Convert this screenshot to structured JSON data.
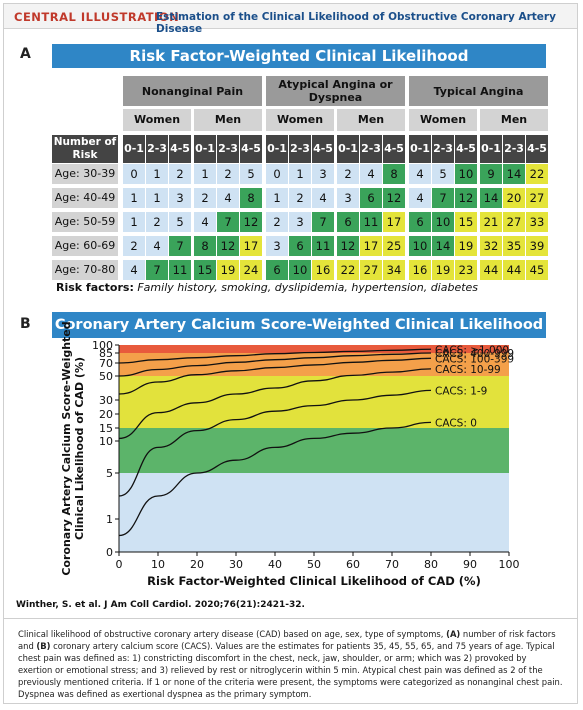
{
  "header": {
    "label": "CENTRAL ILLUSTRATION",
    "title": "Estimation of the Clinical Likelihood of Obstructive Coronary Artery Disease"
  },
  "panel_a": {
    "letter": "A",
    "title": "Risk Factor-Weighted Clinical Likelihood",
    "groups": [
      "Nonanginal Pain",
      "Atypical Angina or Dyspnea",
      "Typical Angina"
    ],
    "sexes": [
      "Women",
      "Men"
    ],
    "risk_header": "Number of Risk Factors",
    "risk_levels": [
      "0-1",
      "2-3",
      "4-5"
    ],
    "ages": [
      "Age: 30-39",
      "Age: 40-49",
      "Age: 50-59",
      "Age: 60-69",
      "Age: 70-80"
    ],
    "values": [
      [
        0,
        1,
        2,
        1,
        2,
        5,
        0,
        1,
        3,
        2,
        4,
        8,
        4,
        5,
        10,
        9,
        14,
        22
      ],
      [
        1,
        1,
        3,
        2,
        4,
        8,
        1,
        2,
        4,
        3,
        6,
        12,
        4,
        7,
        12,
        14,
        20,
        27
      ],
      [
        1,
        2,
        5,
        4,
        7,
        12,
        2,
        3,
        7,
        6,
        11,
        17,
        6,
        10,
        15,
        21,
        27,
        33
      ],
      [
        2,
        4,
        7,
        8,
        12,
        17,
        3,
        6,
        11,
        12,
        17,
        25,
        10,
        14,
        19,
        32,
        35,
        39
      ],
      [
        4,
        7,
        11,
        15,
        19,
        24,
        6,
        10,
        16,
        22,
        27,
        34,
        16,
        19,
        23,
        44,
        44,
        45
      ]
    ],
    "colors": [
      [
        "b",
        "b",
        "b",
        "b",
        "b",
        "b",
        "b",
        "b",
        "b",
        "b",
        "b",
        "g",
        "b",
        "b",
        "g",
        "g",
        "g",
        "y"
      ],
      [
        "b",
        "b",
        "b",
        "b",
        "b",
        "g",
        "b",
        "b",
        "b",
        "b",
        "g",
        "g",
        "b",
        "g",
        "g",
        "g",
        "y",
        "y"
      ],
      [
        "b",
        "b",
        "b",
        "b",
        "g",
        "g",
        "b",
        "b",
        "g",
        "g",
        "g",
        "y",
        "g",
        "g",
        "y",
        "y",
        "y",
        "y"
      ],
      [
        "b",
        "b",
        "g",
        "g",
        "g",
        "y",
        "b",
        "g",
        "g",
        "g",
        "y",
        "y",
        "g",
        "g",
        "y",
        "y",
        "y",
        "y"
      ],
      [
        "b",
        "g",
        "g",
        "g",
        "y",
        "y",
        "g",
        "g",
        "y",
        "y",
        "y",
        "y",
        "y",
        "y",
        "y",
        "y",
        "y",
        "y"
      ]
    ],
    "risk_factors_label": "Risk factors:",
    "risk_factors_text": "Family history, smoking, dyslipidemia, hypertension, diabetes"
  },
  "panel_b": {
    "letter": "B",
    "title": "Coronary Artery Calcium Score-Weighted Clinical Likelihood"
  },
  "colors": {
    "title_bar": "#2f86c6",
    "band_blue": "#cfe2f3",
    "band_green": "#5cb46a",
    "band_yellow": "#e2e23c",
    "band_orange": "#f4a04a",
    "band_red": "#e85a3c"
  },
  "chart_data": {
    "type": "line",
    "xlabel": "Risk Factor-Weighted Clinical Likelihood of CAD (%)",
    "ylabel": "Coronary Artery Calcium Score-Weighted Clinical Likelihood of CAD (%)",
    "xlim": [
      0,
      100
    ],
    "ylim": [
      0,
      100
    ],
    "xticks": [
      0,
      10,
      20,
      30,
      40,
      50,
      60,
      70,
      80,
      90,
      100
    ],
    "yticks": [
      0,
      1,
      5,
      10,
      15,
      20,
      30,
      50,
      70,
      85,
      100
    ],
    "ytick_labels": [
      "0",
      "1",
      "5",
      "10",
      "15",
      "20",
      "30",
      "50",
      "70",
      "85",
      "100"
    ],
    "grid": false,
    "bands": [
      {
        "from": 0,
        "to": 5,
        "color": "#cfe2f3"
      },
      {
        "from": 5,
        "to": 15,
        "color": "#5cb46a"
      },
      {
        "from": 15,
        "to": 50,
        "color": "#e2e23c"
      },
      {
        "from": 50,
        "to": 85,
        "color": "#f4a04a"
      },
      {
        "from": 85,
        "to": 100,
        "color": "#e85a3c"
      }
    ],
    "series": [
      {
        "name": "CACS: ≥1,000",
        "x": [
          0,
          10,
          20,
          30,
          40,
          50,
          60,
          70,
          80
        ],
        "y": [
          70,
          75,
          78,
          81,
          84,
          86,
          88,
          90,
          92
        ]
      },
      {
        "name": "CACS: 400-999",
        "x": [
          0,
          10,
          20,
          30,
          40,
          50,
          60,
          70,
          80
        ],
        "y": [
          50,
          60,
          66,
          71,
          75,
          78,
          81,
          83,
          85
        ]
      },
      {
        "name": "CACS: 100-399",
        "x": [
          0,
          10,
          20,
          30,
          40,
          50,
          60,
          70,
          80
        ],
        "y": [
          35,
          45,
          52,
          58,
          63,
          67,
          71,
          74,
          77
        ]
      },
      {
        "name": "CACS: 10-99",
        "x": [
          0,
          10,
          20,
          30,
          40,
          50,
          60,
          70,
          80
        ],
        "y": [
          11,
          21,
          28,
          35,
          40,
          46,
          51,
          56,
          61
        ]
      },
      {
        "name": "CACS: 1-9",
        "x": [
          0,
          10,
          20,
          30,
          40,
          50,
          60,
          70,
          80
        ],
        "y": [
          3,
          9,
          14,
          18,
          22,
          26,
          30,
          34,
          38
        ]
      },
      {
        "name": "CACS: 0",
        "x": [
          0,
          10,
          20,
          30,
          40,
          50,
          60,
          70,
          80
        ],
        "y": [
          0.5,
          3,
          5,
          7,
          9,
          11,
          13,
          15,
          17
        ]
      }
    ]
  },
  "citation": "Winther, S. et al. J Am Coll Cardiol. 2020;76(21):2421-32.",
  "caption": {
    "p1": "Clinical likelihood of obstructive coronary artery disease (CAD) based on age, sex, type of symptoms, ",
    "a": "(A)",
    "p2": " number of risk factors and ",
    "b": "(B)",
    "p3": " coronary artery calcium score (CACS). Values are the estimates for patients 35, 45, 55, 65, and 75 years of age. Typical chest pain was defined as: 1) constricting discomfort in the chest, neck, jaw, shoulder, or arm; which was 2) provoked by exertion or emotional stress; and 3) relieved by rest or nitroglycerin within 5 min. Atypical chest pain was defined as 2 of the previously mentioned criteria. If 1 or none of the criteria were present, the symptoms were categorized as nonanginal chest pain. Dyspnea was defined as exertional dyspnea as the primary symptom."
  }
}
